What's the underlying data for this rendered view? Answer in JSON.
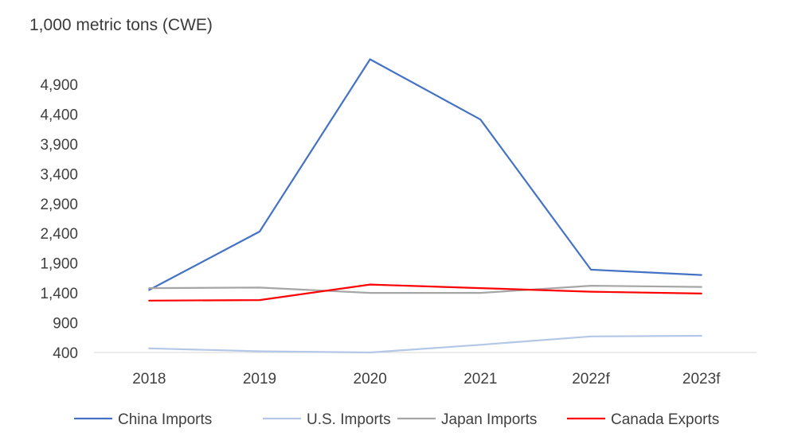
{
  "chart_data": {
    "type": "line",
    "title": "",
    "ylabel": "1,000 metric tons (CWE)",
    "xlabel": "",
    "categories": [
      "2018",
      "2019",
      "2020",
      "2021",
      "2022f",
      "2023f"
    ],
    "y_ticks": [
      "400",
      "900",
      "1,400",
      "1,900",
      "2,400",
      "2,900",
      "3,400",
      "3,900",
      "4,400",
      "4,900"
    ],
    "ylim": [
      400,
      5400
    ],
    "grid": false,
    "legend_position": "bottom",
    "series": [
      {
        "name": "China Imports",
        "color": "#4472c4",
        "values": [
          1450,
          2430,
          5320,
          4310,
          1790,
          1700
        ]
      },
      {
        "name": "U.S. Imports",
        "color": "#b4c7e7",
        "values": [
          470,
          420,
          400,
          530,
          670,
          680
        ]
      },
      {
        "name": "Japan Imports",
        "color": "#a5a5a5",
        "values": [
          1480,
          1490,
          1400,
          1400,
          1520,
          1500
        ]
      },
      {
        "name": "Canada Exports",
        "color": "#ff0000",
        "values": [
          1270,
          1280,
          1540,
          1480,
          1420,
          1390
        ]
      }
    ]
  }
}
